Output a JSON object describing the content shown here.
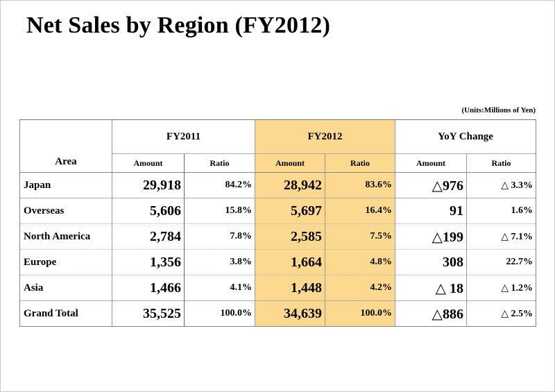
{
  "title": "Net Sales by Region (FY2012)",
  "units": "(Units:Millions of Yen)",
  "header": {
    "area": "Area",
    "groups": [
      "FY2011",
      "FY2012",
      "YoY Change"
    ],
    "sub": [
      "Amount",
      "Ratio",
      "Amount",
      "Ratio",
      "Amount",
      "Ratio"
    ]
  },
  "highlight_color": "#fcd98f",
  "rows": [
    {
      "area": "Japan",
      "fy2011_amount": "29,918",
      "fy2011_ratio": "84.2%",
      "fy2012_amount": "28,942",
      "fy2012_ratio": "83.6%",
      "yoy_amount": "△976",
      "yoy_ratio": "△ 3.3%"
    },
    {
      "area": "Overseas",
      "fy2011_amount": "5,606",
      "fy2011_ratio": "15.8%",
      "fy2012_amount": "5,697",
      "fy2012_ratio": "16.4%",
      "yoy_amount": "91",
      "yoy_ratio": "1.6%"
    },
    {
      "area": "North America",
      "fy2011_amount": "2,784",
      "fy2011_ratio": "7.8%",
      "fy2012_amount": "2,585",
      "fy2012_ratio": "7.5%",
      "yoy_amount": "△199",
      "yoy_ratio": "△ 7.1%"
    },
    {
      "area": "Europe",
      "fy2011_amount": "1,356",
      "fy2011_ratio": "3.8%",
      "fy2012_amount": "1,664",
      "fy2012_ratio": "4.8%",
      "yoy_amount": "308",
      "yoy_ratio": "22.7%"
    },
    {
      "area": "Asia",
      "fy2011_amount": "1,466",
      "fy2011_ratio": "4.1%",
      "fy2012_amount": "1,448",
      "fy2012_ratio": "4.2%",
      "yoy_amount": "△ 18",
      "yoy_ratio": "△ 1.2%"
    },
    {
      "area": "Grand Total",
      "fy2011_amount": "35,525",
      "fy2011_ratio": "100.0%",
      "fy2012_amount": "34,639",
      "fy2012_ratio": "100.0%",
      "yoy_amount": "△886",
      "yoy_ratio": "△ 2.5%"
    }
  ]
}
